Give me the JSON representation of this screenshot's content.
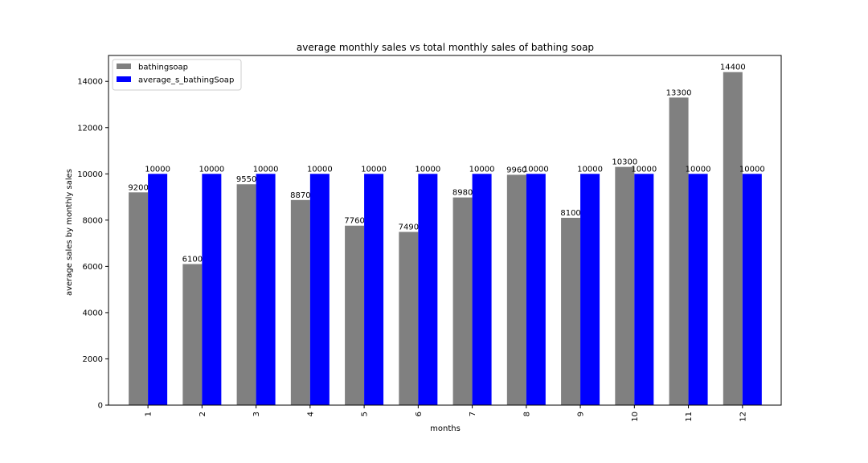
{
  "chart_data": {
    "type": "bar",
    "title": "average monthly sales vs total monthly sales of bathing soap",
    "xlabel": "months",
    "ylabel": "average sales by monthly sales",
    "categories": [
      "1",
      "2",
      "3",
      "4",
      "5",
      "6",
      "7",
      "8",
      "9",
      "10",
      "11",
      "12"
    ],
    "series": [
      {
        "name": "bathingsoap",
        "color": "#808080",
        "values": [
          9200,
          6100,
          9550,
          8870,
          7760,
          7490,
          8980,
          9960,
          8100,
          10300,
          13300,
          14400
        ]
      },
      {
        "name": "average_s_bathingSoap",
        "color": "#0000ff",
        "values": [
          10000,
          10000,
          10000,
          10000,
          10000,
          10000,
          10000,
          10000,
          10000,
          10000,
          10000,
          10000
        ]
      }
    ],
    "ylim": [
      0,
      15120
    ],
    "yticks": [
      0,
      2000,
      4000,
      6000,
      8000,
      10000,
      12000,
      14000
    ],
    "grid": false,
    "legend_position": "upper-left",
    "x_tick_rotation": "vertical"
  }
}
